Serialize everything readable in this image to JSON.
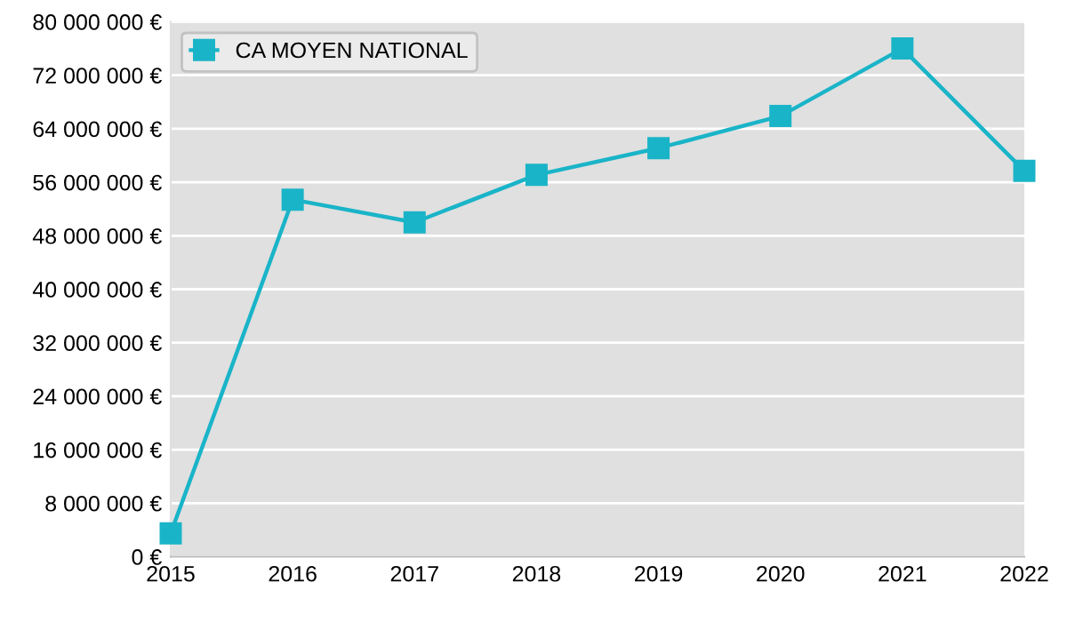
{
  "chart_data": {
    "type": "line",
    "x": [
      2015,
      2016,
      2017,
      2018,
      2019,
      2020,
      2021,
      2022
    ],
    "series": [
      {
        "name": "CA MOYEN NATIONAL",
        "color": "#1ab4c8",
        "values": [
          3500000,
          53400000,
          50000000,
          57100000,
          61100000,
          65900000,
          76000000,
          57700000
        ]
      }
    ],
    "xlim": [
      2015,
      2022
    ],
    "xticks": [
      2015,
      2016,
      2017,
      2018,
      2019,
      2020,
      2021,
      2022
    ],
    "ylim": [
      0,
      80000000
    ],
    "yticks": [
      {
        "value": 0,
        "label": "0 €"
      },
      {
        "value": 8000000,
        "label": "8 000 000 €"
      },
      {
        "value": 16000000,
        "label": "16 000 000 €"
      },
      {
        "value": 24000000,
        "label": "24 000 000 €"
      },
      {
        "value": 32000000,
        "label": "32 000 000 €"
      },
      {
        "value": 40000000,
        "label": "40 000 000 €"
      },
      {
        "value": 48000000,
        "label": "48 000 000 €"
      },
      {
        "value": 56000000,
        "label": "56 000 000 €"
      },
      {
        "value": 64000000,
        "label": "64 000 000 €"
      },
      {
        "value": 72000000,
        "label": "72 000 000 €"
      },
      {
        "value": 80000000,
        "label": "80 000 000 €"
      }
    ],
    "grid": "y",
    "legend": "top left",
    "marker": "square",
    "line_style": "solid"
  }
}
